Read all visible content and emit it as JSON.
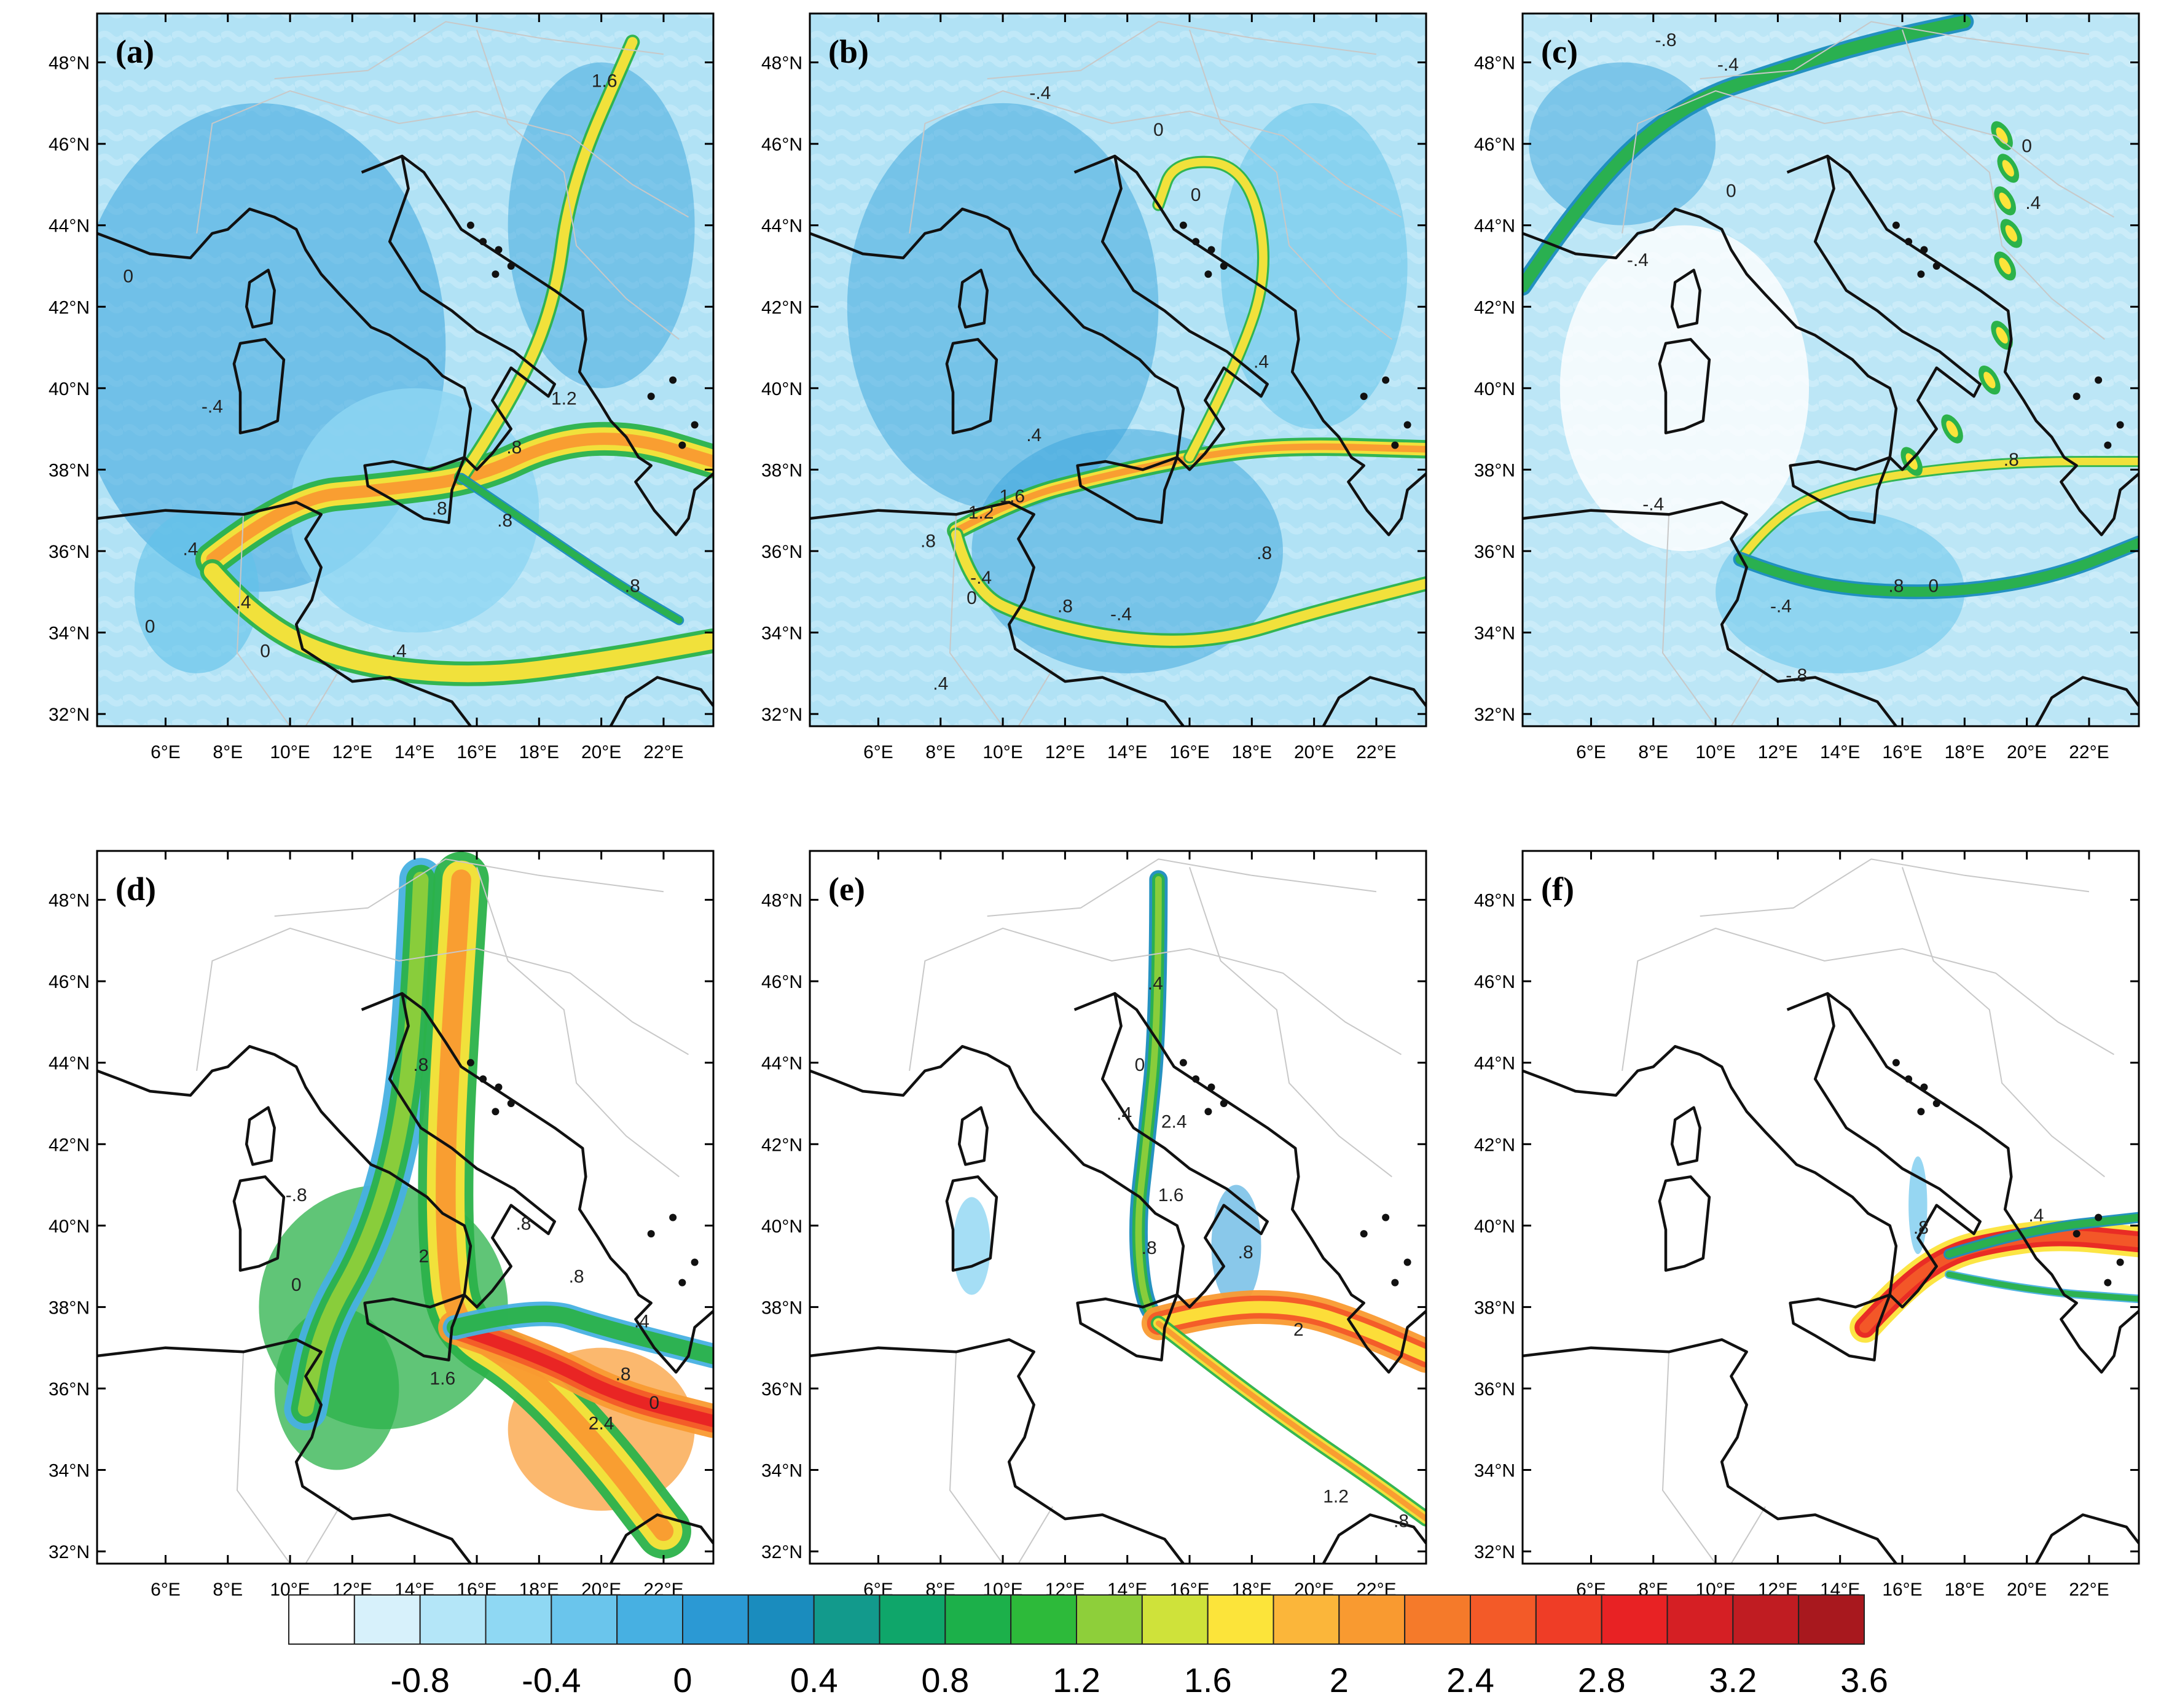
{
  "panels": [
    {
      "label": "(a)",
      "contour_labels": [
        "0",
        "0",
        "-.4",
        ".4",
        ".4",
        "1.6",
        "1.2",
        ".8",
        ".8",
        ".8",
        "0",
        ".4",
        ".8"
      ]
    },
    {
      "label": "(b)",
      "contour_labels": [
        "-.4",
        "0",
        "0",
        ".4",
        "1.6",
        "1.2",
        ".4",
        ".8",
        "0",
        ".8",
        "-.4",
        ".4",
        ".8",
        "-.4"
      ]
    },
    {
      "label": "(c)",
      "contour_labels": [
        "-.8",
        "-.4",
        "0",
        "-.4",
        "0",
        "-.4",
        ".8",
        "0",
        "-.4",
        "-.8",
        ".8",
        ".4"
      ]
    },
    {
      "label": "(d)",
      "contour_labels": [
        ".8",
        "-.8",
        "0",
        ".8",
        "2",
        "1.6",
        "2.4",
        ".4",
        ".8",
        "0",
        ".8"
      ]
    },
    {
      "label": "(e)",
      "contour_labels": [
        ".4",
        "0",
        ".4",
        "2.4",
        "1.6",
        ".8",
        ".8",
        "1.2",
        "2",
        ".8"
      ]
    },
    {
      "label": "(f)",
      "contour_labels": [
        ".8",
        ".4"
      ]
    }
  ],
  "axes": {
    "lat_ticks": [
      "48°N",
      "46°N",
      "44°N",
      "42°N",
      "40°N",
      "38°N",
      "36°N",
      "34°N",
      "32°N"
    ],
    "lon_ticks": [
      "6°E",
      "8°E",
      "10°E",
      "12°E",
      "14°E",
      "16°E",
      "18°E",
      "20°E",
      "22°E"
    ]
  },
  "colorbar": {
    "labels": [
      "-0.8",
      "-0.4",
      "0",
      "0.4",
      "0.8",
      "1.2",
      "1.6",
      "2",
      "2.4",
      "2.8",
      "3.2",
      "3.6"
    ],
    "colors": [
      "#ffffff",
      "#d7f1fb",
      "#b4e6f8",
      "#8fd8f3",
      "#6ac5ec",
      "#47b0e2",
      "#2b99d4",
      "#1a8cbe",
      "#129a8c",
      "#0fa66a",
      "#1cb04a",
      "#2dba3a",
      "#8ecf3a",
      "#cfe23a",
      "#fce43a",
      "#fbb63a",
      "#f99a30",
      "#f57a2a",
      "#f35a28",
      "#ef3d26",
      "#e82224",
      "#d51f24",
      "#c01c22",
      "#a8181e"
    ]
  }
}
